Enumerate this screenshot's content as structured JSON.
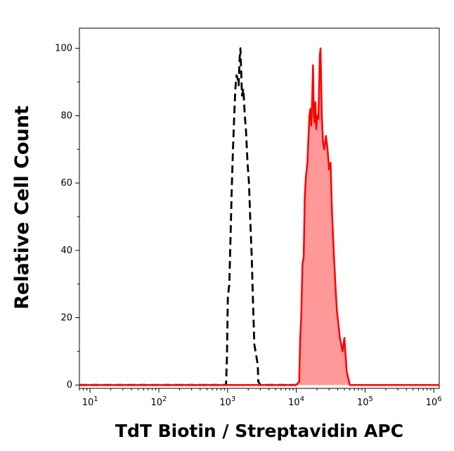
{
  "chart_data": {
    "type": "area",
    "title": "",
    "xlabel": "TdT Biotin / Streptavidin APC",
    "ylabel": "Relative Cell Count",
    "x_scale": "log",
    "xlim": [
      7,
      1200000
    ],
    "ylim": [
      -1,
      106
    ],
    "y_ticks": [
      0,
      20,
      40,
      60,
      80,
      100
    ],
    "x_ticks": [
      {
        "value": 10,
        "base": "10",
        "exp": "1"
      },
      {
        "value": 100,
        "base": "10",
        "exp": "2"
      },
      {
        "value": 1000,
        "base": "10",
        "exp": "3"
      },
      {
        "value": 10000,
        "base": "10",
        "exp": "4"
      },
      {
        "value": 100000,
        "base": "10",
        "exp": "5"
      },
      {
        "value": 1000000,
        "base": "10",
        "exp": "6"
      }
    ],
    "grid": false,
    "series": [
      {
        "style": "dashed",
        "color": "#000000",
        "filled": false,
        "points": [
          [
            7,
            0
          ],
          [
            500,
            0
          ],
          [
            950,
            0
          ],
          [
            980,
            8
          ],
          [
            1010,
            26
          ],
          [
            1060,
            30
          ],
          [
            1100,
            42
          ],
          [
            1150,
            58
          ],
          [
            1200,
            70
          ],
          [
            1250,
            80
          ],
          [
            1300,
            88
          ],
          [
            1350,
            92
          ],
          [
            1400,
            91
          ],
          [
            1450,
            89
          ],
          [
            1500,
            97
          ],
          [
            1540,
            100
          ],
          [
            1580,
            93
          ],
          [
            1620,
            86
          ],
          [
            1700,
            88
          ],
          [
            1780,
            80
          ],
          [
            1850,
            76
          ],
          [
            1950,
            66
          ],
          [
            2050,
            60
          ],
          [
            2150,
            48
          ],
          [
            2250,
            38
          ],
          [
            2350,
            24
          ],
          [
            2450,
            12
          ],
          [
            2550,
            10
          ],
          [
            2650,
            8
          ],
          [
            2750,
            6
          ],
          [
            2800,
            1
          ],
          [
            3000,
            0
          ],
          [
            10000,
            0
          ]
        ]
      },
      {
        "style": "solid",
        "color": "#ff0000",
        "fill": "#ff9999",
        "filled": true,
        "points": [
          [
            7,
            0
          ],
          [
            10000,
            0
          ],
          [
            11000,
            1
          ],
          [
            11400,
            14
          ],
          [
            11800,
            20
          ],
          [
            12300,
            36
          ],
          [
            12800,
            38
          ],
          [
            13300,
            56
          ],
          [
            13800,
            62
          ],
          [
            14500,
            66
          ],
          [
            15000,
            73
          ],
          [
            15500,
            80
          ],
          [
            16000,
            82
          ],
          [
            16500,
            77
          ],
          [
            17000,
            85
          ],
          [
            17500,
            95
          ],
          [
            18000,
            80
          ],
          [
            18500,
            78
          ],
          [
            19000,
            84
          ],
          [
            19500,
            76
          ],
          [
            20000,
            80
          ],
          [
            21000,
            79
          ],
          [
            22000,
            98
          ],
          [
            22500,
            100
          ],
          [
            23500,
            80
          ],
          [
            24500,
            72
          ],
          [
            25500,
            70
          ],
          [
            27000,
            74
          ],
          [
            28500,
            70
          ],
          [
            30000,
            64
          ],
          [
            31500,
            66
          ],
          [
            33000,
            52
          ],
          [
            35000,
            40
          ],
          [
            37000,
            30
          ],
          [
            39000,
            22
          ],
          [
            41000,
            18
          ],
          [
            43000,
            14
          ],
          [
            45000,
            12
          ],
          [
            47000,
            10
          ],
          [
            50000,
            14
          ],
          [
            52000,
            9
          ],
          [
            54000,
            4
          ],
          [
            57000,
            2
          ],
          [
            60000,
            0
          ],
          [
            1200000,
            0
          ]
        ]
      }
    ]
  }
}
